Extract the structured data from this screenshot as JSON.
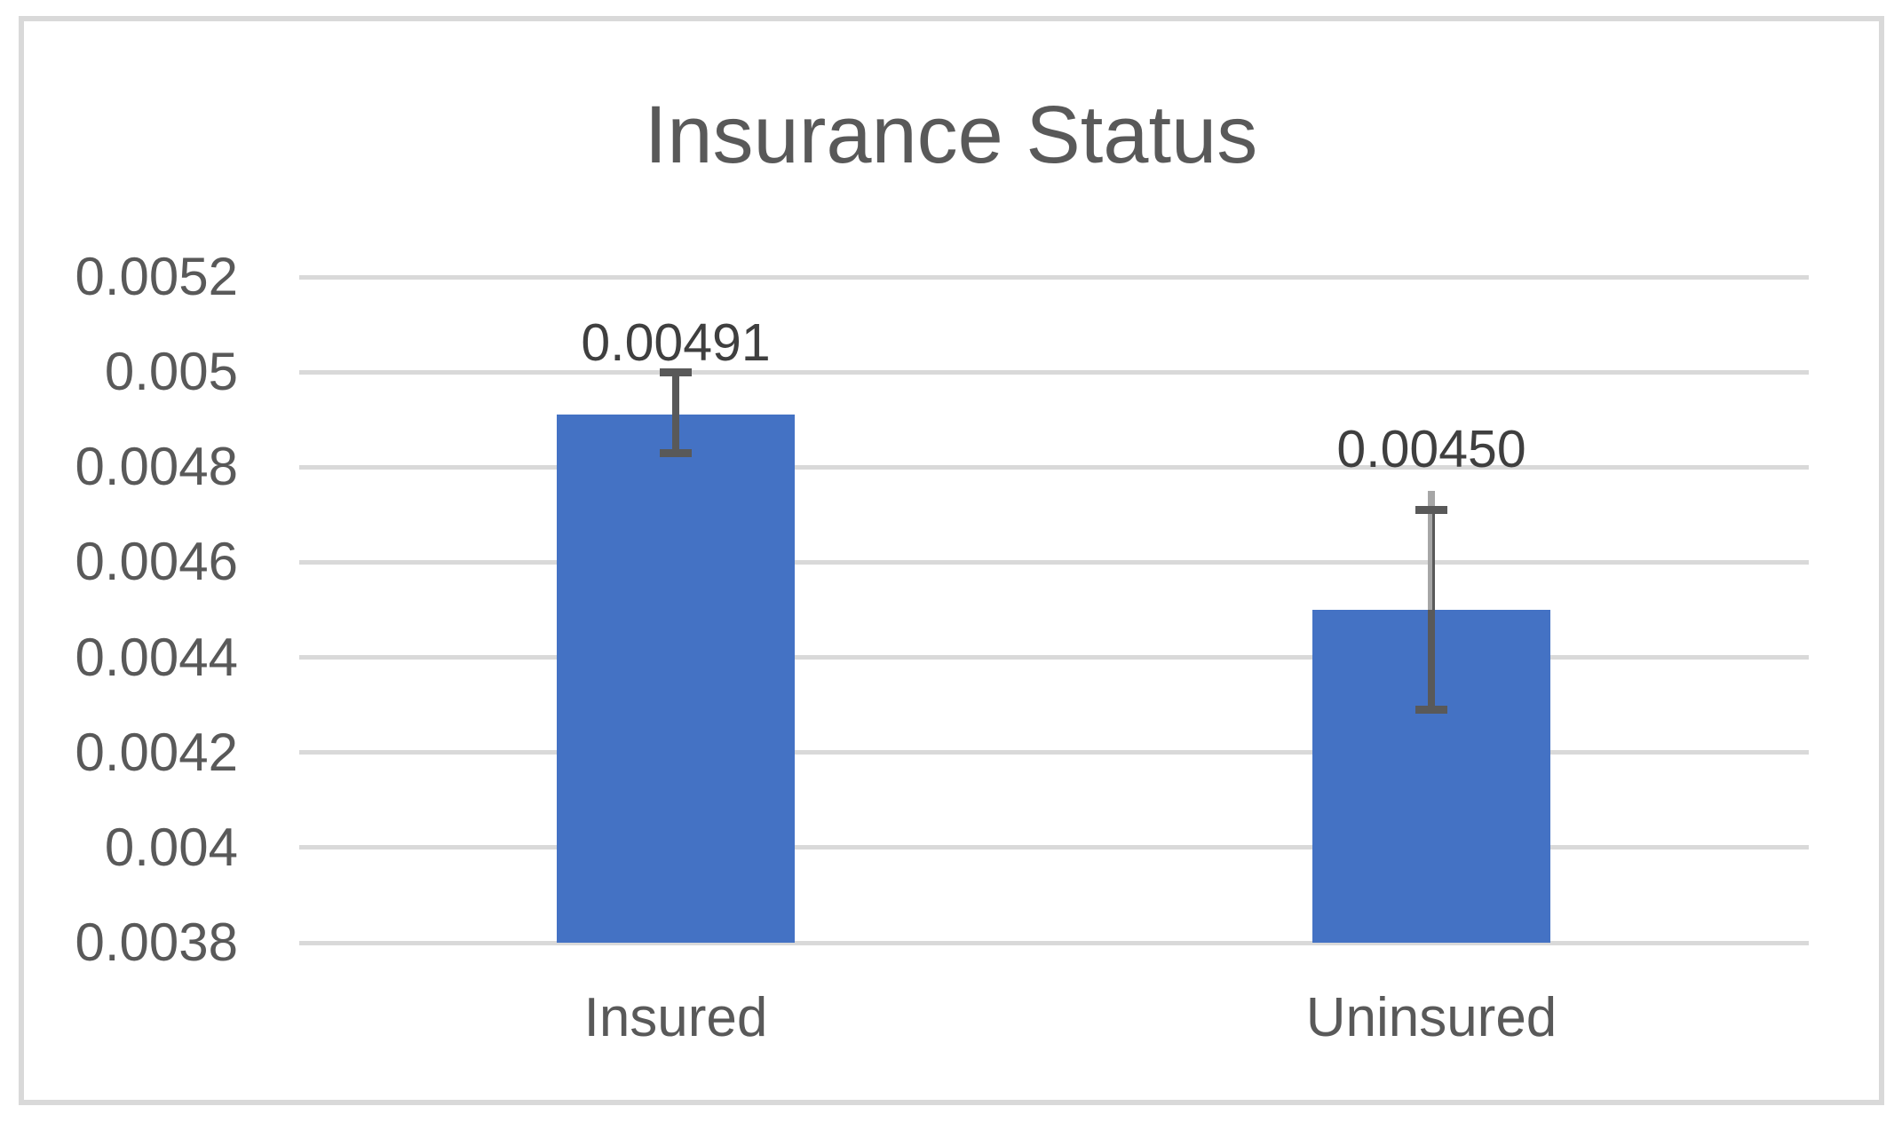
{
  "chart_data": {
    "type": "bar",
    "title": "Insurance Status",
    "categories": [
      "Insured",
      "Uninsured"
    ],
    "values": [
      0.00491,
      0.0045
    ],
    "data_labels": [
      "0.00491",
      "0.00450"
    ],
    "series": [
      {
        "name": "Insurance Status",
        "values": [
          0.00491,
          0.0045
        ],
        "error_bars": [
          {
            "high": 0.005,
            "low": 0.00483
          },
          {
            "high": 0.00471,
            "low": 0.00429,
            "line_high": 0.00475
          }
        ]
      }
    ],
    "xlabel": "",
    "ylabel": "",
    "y_ticks": [
      "0.0052",
      "0.005",
      "0.0048",
      "0.0046",
      "0.0044",
      "0.0042",
      "0.004",
      "0.0038"
    ],
    "y_tick_values": [
      0.0052,
      0.005,
      0.0048,
      0.0046,
      0.0044,
      0.0042,
      0.004,
      0.0038
    ],
    "ylim": [
      0.0038,
      0.0052
    ],
    "grid": true,
    "legend_position": "none",
    "colors": {
      "bar_fill": "#4472C4",
      "gridline": "#d9d9d9",
      "frame_border": "#d9d9d9",
      "error_bar_dark": "#595959",
      "error_bar_light": "#a6a6a6",
      "title_text": "#595959",
      "axis_text": "#595959",
      "data_label_text": "#3f3f3f",
      "background": "#ffffff"
    }
  }
}
